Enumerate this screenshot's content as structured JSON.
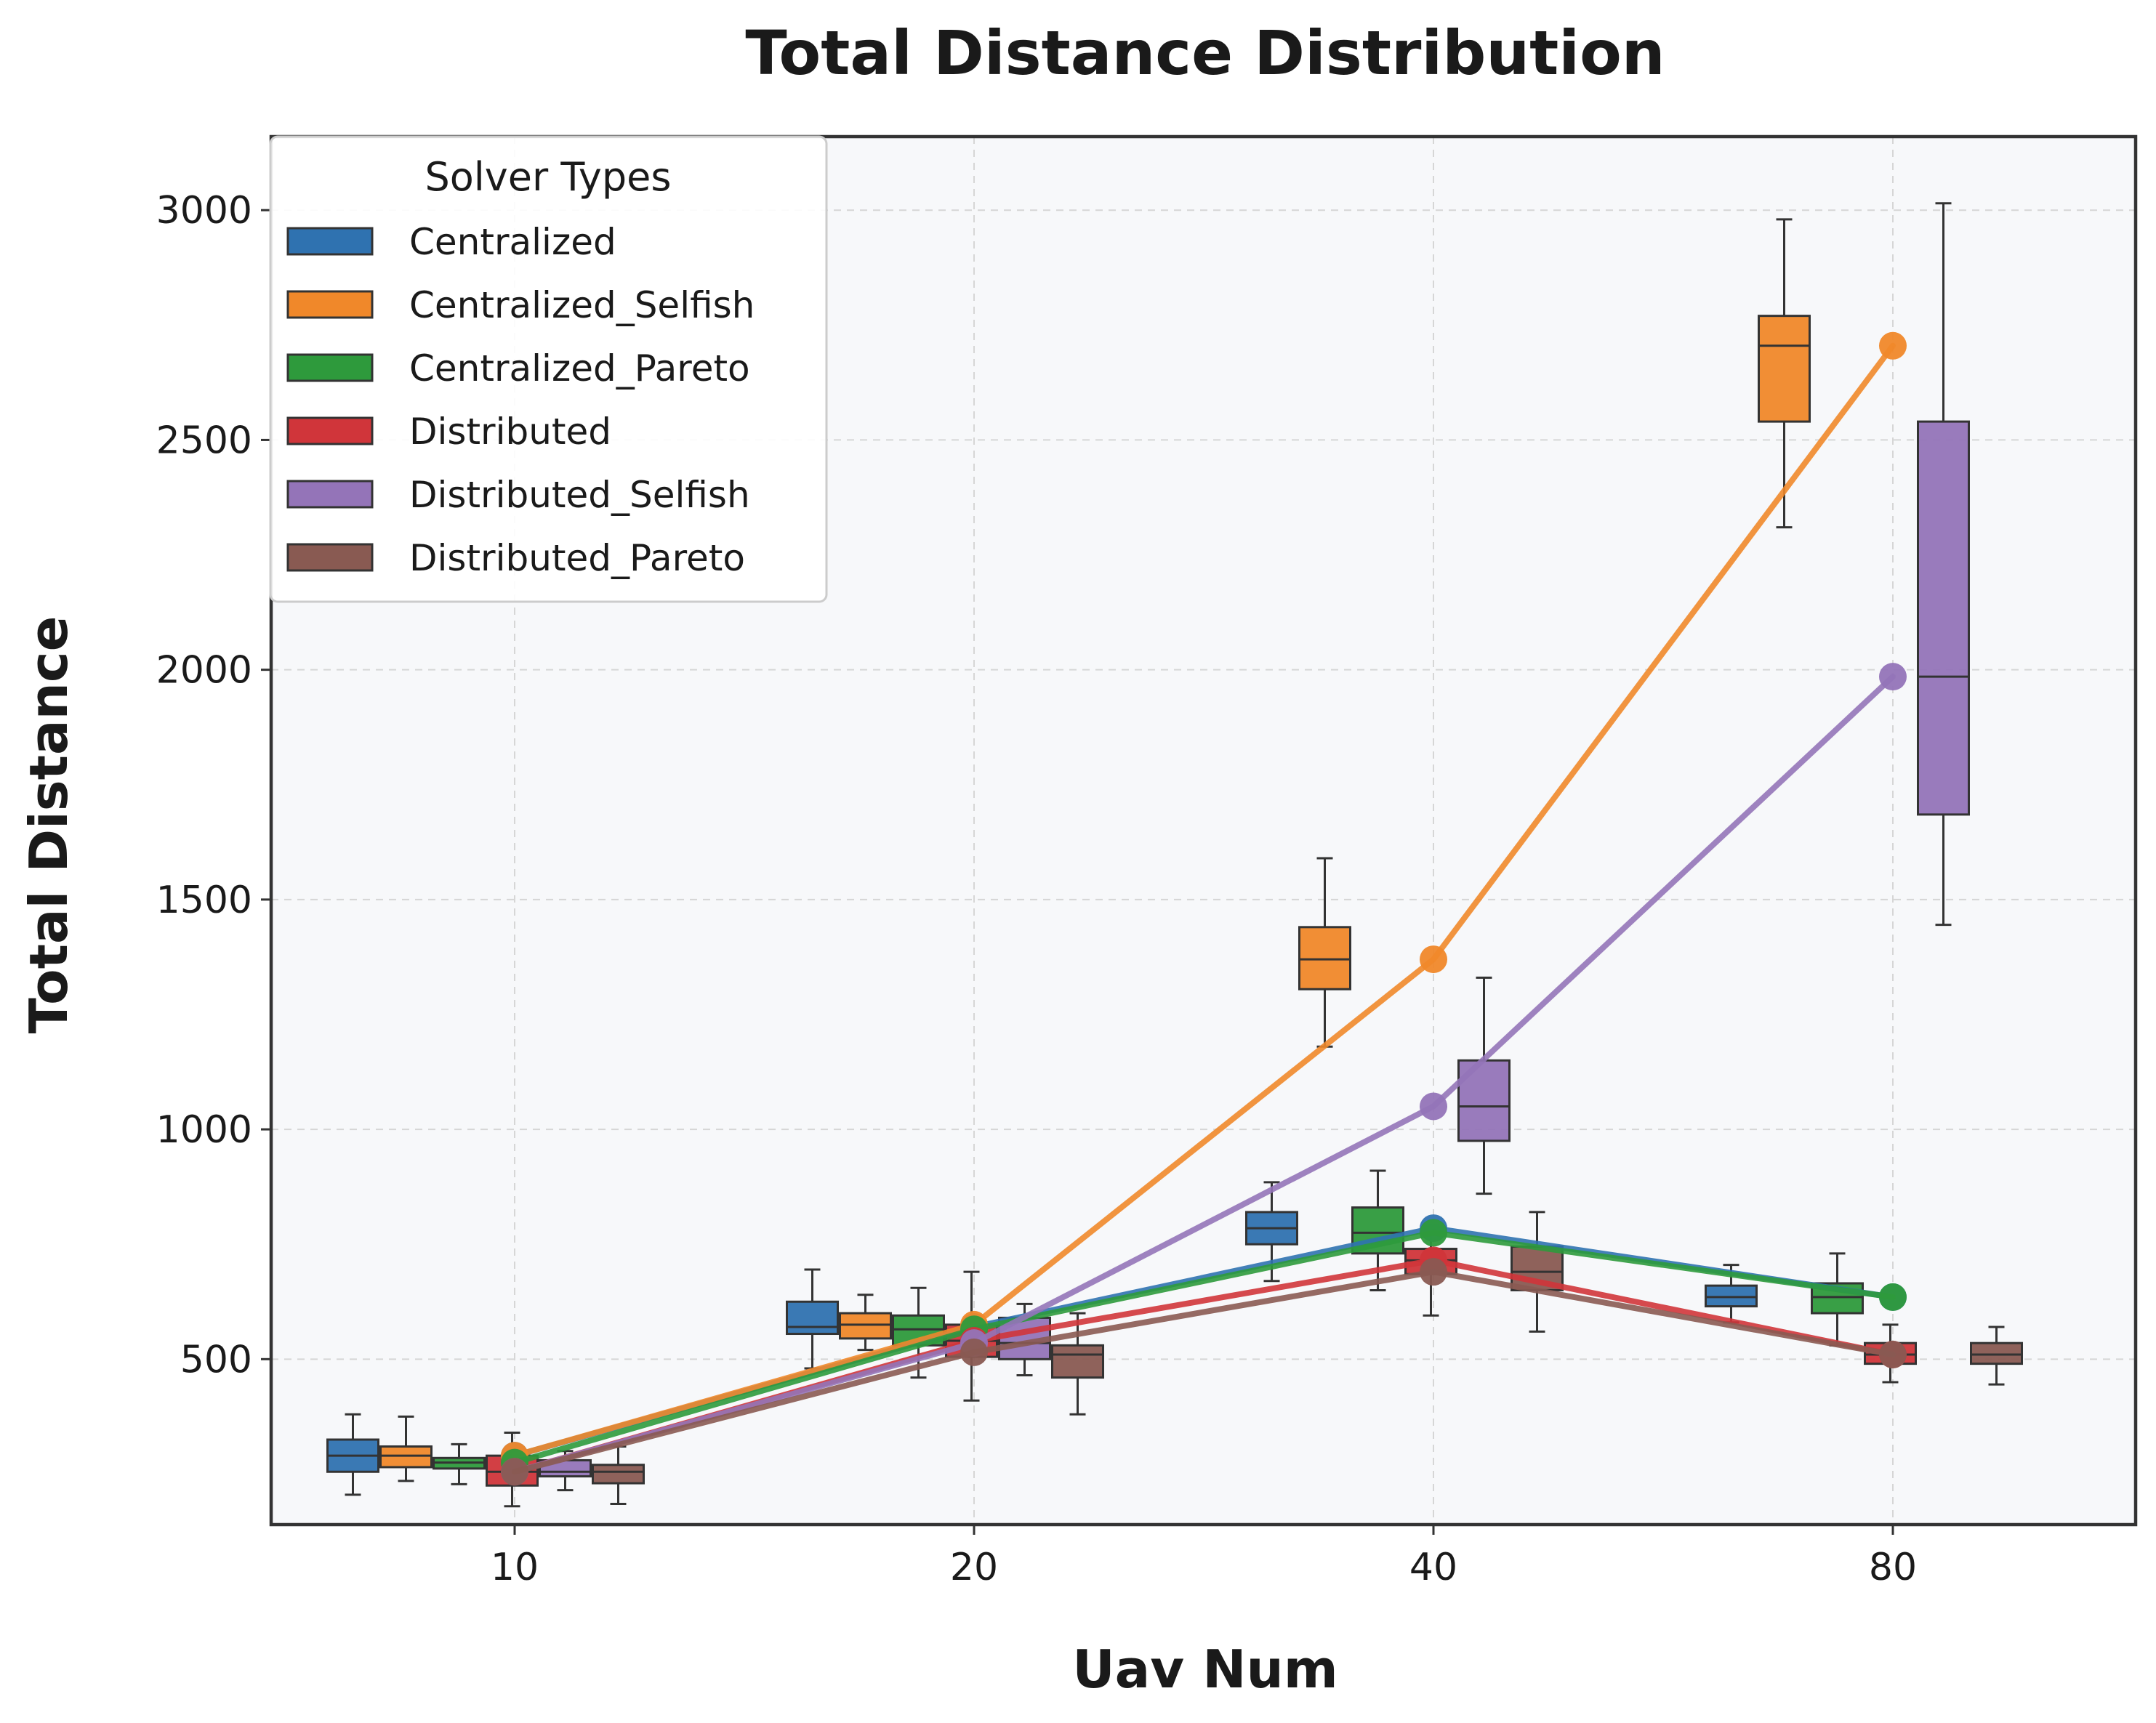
{
  "chart_data": {
    "type": "box",
    "title": "Total Distance Distribution",
    "xlabel": "Uav Num",
    "ylabel": "Total Distance",
    "categories": [
      "10",
      "20",
      "40",
      "80"
    ],
    "yticks": [
      500,
      1000,
      1500,
      2000,
      2500,
      3000
    ],
    "ylim": [
      140,
      3160
    ],
    "grid": true,
    "legend": {
      "title": "Solver Types",
      "position": "top-left"
    },
    "series": [
      {
        "name": "Centralized",
        "color": "#2f72b0",
        "boxes": [
          {
            "whislo": 205,
            "q1": 255,
            "med": 290,
            "q3": 325,
            "whishi": 380
          },
          {
            "whislo": 480,
            "q1": 555,
            "med": 570,
            "q3": 625,
            "whishi": 695
          },
          {
            "whislo": 670,
            "q1": 750,
            "med": 785,
            "q3": 820,
            "whishi": 885
          },
          {
            "whislo": 580,
            "q1": 615,
            "med": 635,
            "q3": 660,
            "whishi": 705
          }
        ],
        "means": [
          290,
          570,
          785,
          635
        ]
      },
      {
        "name": "Centralized_Selfish",
        "color": "#f0882a",
        "boxes": [
          {
            "whislo": 235,
            "q1": 265,
            "med": 290,
            "q3": 310,
            "whishi": 375
          },
          {
            "whislo": 520,
            "q1": 545,
            "med": 575,
            "q3": 600,
            "whishi": 640
          },
          {
            "whislo": 1180,
            "q1": 1305,
            "med": 1370,
            "q3": 1440,
            "whishi": 1590
          },
          {
            "whislo": 2310,
            "q1": 2540,
            "med": 2705,
            "q3": 2770,
            "whishi": 2980
          }
        ],
        "means": [
          290,
          575,
          1370,
          2705
        ]
      },
      {
        "name": "Centralized_Pareto",
        "color": "#2e9a3c",
        "boxes": [
          {
            "whislo": 228,
            "q1": 262,
            "med": 275,
            "q3": 285,
            "whishi": 315
          },
          {
            "whislo": 460,
            "q1": 530,
            "med": 565,
            "q3": 595,
            "whishi": 655
          },
          {
            "whislo": 650,
            "q1": 730,
            "med": 775,
            "q3": 830,
            "whishi": 910
          },
          {
            "whislo": 530,
            "q1": 600,
            "med": 635,
            "q3": 665,
            "whishi": 730
          }
        ],
        "means": [
          275,
          565,
          775,
          635
        ]
      },
      {
        "name": "Distributed",
        "color": "#d0353a",
        "boxes": [
          {
            "whislo": 180,
            "q1": 225,
            "med": 255,
            "q3": 290,
            "whishi": 340
          },
          {
            "whislo": 410,
            "q1": 505,
            "med": 540,
            "q3": 575,
            "whishi": 690
          },
          {
            "whislo": 595,
            "q1": 685,
            "med": 715,
            "q3": 740,
            "whishi": 790
          },
          {
            "whislo": 450,
            "q1": 490,
            "med": 510,
            "q3": 535,
            "whishi": 575
          }
        ],
        "means": [
          255,
          540,
          715,
          510
        ]
      },
      {
        "name": "Distributed_Selfish",
        "color": "#9474b8",
        "boxes": [
          {
            "whislo": 215,
            "q1": 245,
            "med": 255,
            "q3": 280,
            "whishi": 300
          },
          {
            "whislo": 465,
            "q1": 500,
            "med": 535,
            "q3": 590,
            "whishi": 620
          },
          {
            "whislo": 860,
            "q1": 975,
            "med": 1050,
            "q3": 1150,
            "whishi": 1330
          },
          {
            "whislo": 1445,
            "q1": 1685,
            "med": 1985,
            "q3": 2540,
            "whishi": 3015
          }
        ],
        "means": [
          255,
          535,
          1050,
          1985
        ]
      },
      {
        "name": "Distributed_Pareto",
        "color": "#895a52",
        "boxes": [
          {
            "whislo": 185,
            "q1": 230,
            "med": 255,
            "q3": 270,
            "whishi": 310
          },
          {
            "whislo": 380,
            "q1": 460,
            "med": 510,
            "q3": 530,
            "whishi": 600
          },
          {
            "whislo": 560,
            "q1": 650,
            "med": 690,
            "q3": 745,
            "whishi": 820
          },
          {
            "whislo": 445,
            "q1": 490,
            "med": 510,
            "q3": 535,
            "whishi": 570
          }
        ],
        "means": [
          255,
          515,
          690,
          510
        ]
      }
    ]
  }
}
